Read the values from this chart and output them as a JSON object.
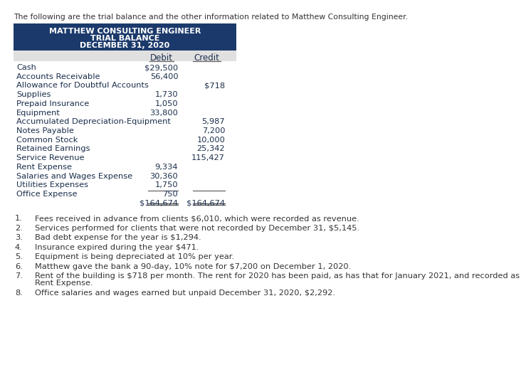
{
  "intro_text": "The following are the trial balance and the other information related to Matthew Consulting Engineer.",
  "header_line1": "MATTHEW CONSULTING ENGINEER",
  "header_line2": "TRIAL BALANCE",
  "header_line3": "DECEMBER 31, 2020",
  "header_bg": "#1B3A6B",
  "header_text_color": "#FFFFFF",
  "col_header_bg": "#E0E0E0",
  "table_accounts": [
    "Cash",
    "Accounts Receivable",
    "Allowance for Doubtful Accounts",
    "Supplies",
    "Prepaid Insurance",
    "Equipment",
    "Accumulated Depreciation-Equipment",
    "Notes Payable",
    "Common Stock",
    "Retained Earnings",
    "Service Revenue",
    "Rent Expense",
    "Salaries and Wages Expense",
    "Utilities Expenses",
    "Office Expense"
  ],
  "debit_values": [
    "$29,500",
    "56,400",
    "",
    "1,730",
    "1,050",
    "33,800",
    "",
    "",
    "",
    "",
    "",
    "9,334",
    "30,360",
    "1,750",
    "750"
  ],
  "credit_values": [
    "",
    "",
    "$718",
    "",
    "",
    "",
    "5,987",
    "7,200",
    "10,000",
    "25,342",
    "115,427",
    "",
    "",
    "",
    ""
  ],
  "total_debit": "$164,674",
  "total_credit": "$164,674",
  "notes": [
    "Fees received in advance from clients $6,010, which were recorded as revenue.",
    "Services performed for clients that were not recorded by December 31, $5,145.",
    "Bad debt expense for the year is $1,294.",
    "Insurance expired during the year $471.",
    "Equipment is being depreciated at 10% per year.",
    "Matthew gave the bank a 90-day, 10% note for $7,200 on December 1, 2020.",
    "Rent of the building is $718 per month. The rent for 2020 has been paid, as has that for January 2021, and recorded as Rent Expense.",
    "Office salaries and wages earned but unpaid December 31, 2020, $2,292."
  ],
  "notes_wrap": [
    false,
    false,
    false,
    false,
    false,
    false,
    true,
    false
  ],
  "note7_line2": "Rent Expense.",
  "bg_color": "#FFFFFF",
  "text_color": "#333333",
  "table_text_color": "#1B2E4B"
}
